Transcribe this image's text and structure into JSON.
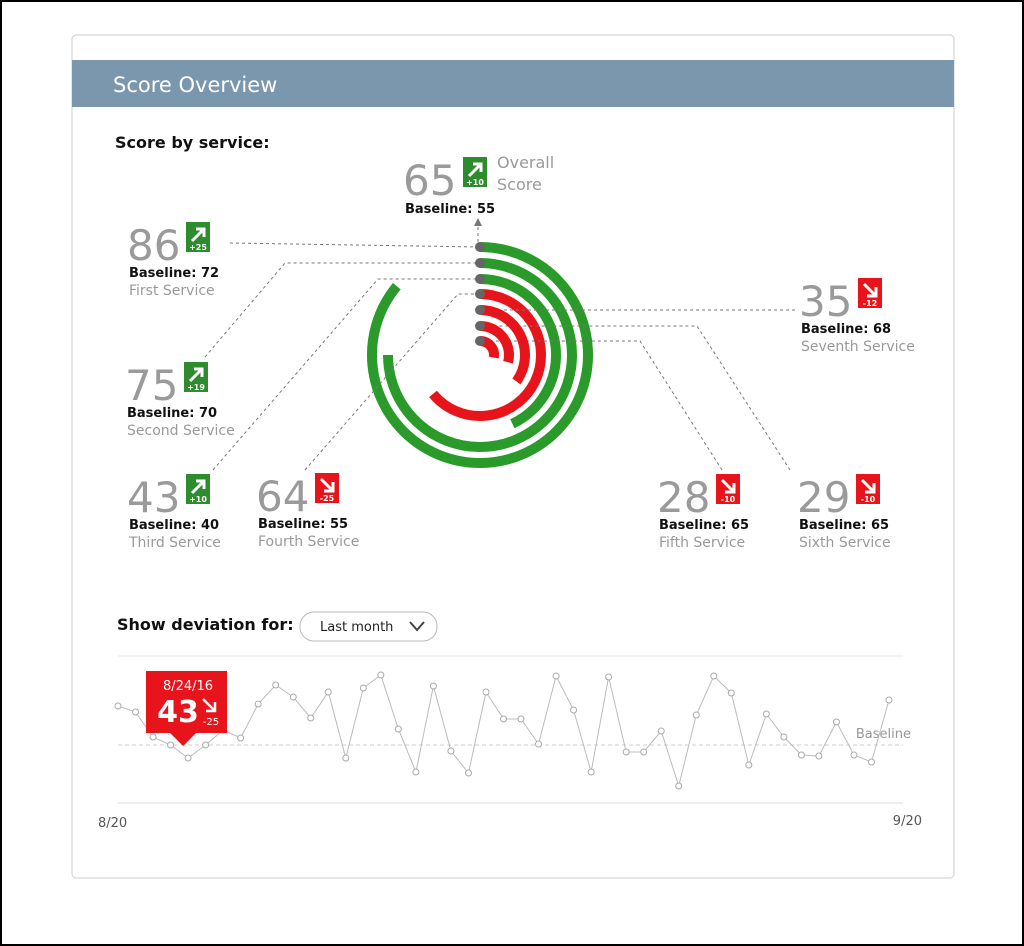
{
  "header": {
    "title": "Score Overview"
  },
  "labels": {
    "score_by_service": "Score by service:",
    "baseline": "Baseline:",
    "show_deviation_for": "Show deviation for:"
  },
  "overall": {
    "score": 65,
    "delta": "+10",
    "baseline": 55,
    "name": "Overall Score"
  },
  "services": [
    {
      "name": "First Service",
      "score": 86,
      "delta": "+25",
      "baseline": 72
    },
    {
      "name": "Second Service",
      "score": 75,
      "delta": "+19",
      "baseline": 70
    },
    {
      "name": "Third Service",
      "score": 43,
      "delta": "+10",
      "baseline": 40
    },
    {
      "name": "Fourth Service",
      "score": 64,
      "delta": "-25",
      "baseline": 55
    },
    {
      "name": "Fifth Service",
      "score": 28,
      "delta": "-10",
      "baseline": 65
    },
    {
      "name": "Sixth Service",
      "score": 29,
      "delta": "-10",
      "baseline": 65
    },
    {
      "name": "Seventh Service",
      "score": 35,
      "delta": "-12",
      "baseline": 68
    }
  ],
  "deviation": {
    "dropdown": "Last month",
    "baseline_label": "Baseline",
    "x_start": "8/20",
    "x_end": "9/20",
    "ylim": [
      -27.5,
      42.5
    ],
    "values": [
      19.5,
      16.5,
      4,
      0,
      -6.5,
      0,
      7.5,
      3.5,
      20.5,
      30,
      24,
      13.5,
      26.5,
      -6.5,
      28.5,
      35,
      8,
      -13.5,
      29.5,
      -3,
      -14,
      26.5,
      13,
      13,
      0.5,
      34.5,
      17.5,
      -13.5,
      34,
      -3.5,
      -3.5,
      7,
      -20.5,
      15,
      34.5,
      26,
      -10,
      15.5,
      4,
      -5,
      -5.5,
      11.5,
      -5,
      -8.5,
      22.5
    ],
    "callout": {
      "date": "8/24/16",
      "value": 43,
      "delta": "-25"
    }
  }
}
